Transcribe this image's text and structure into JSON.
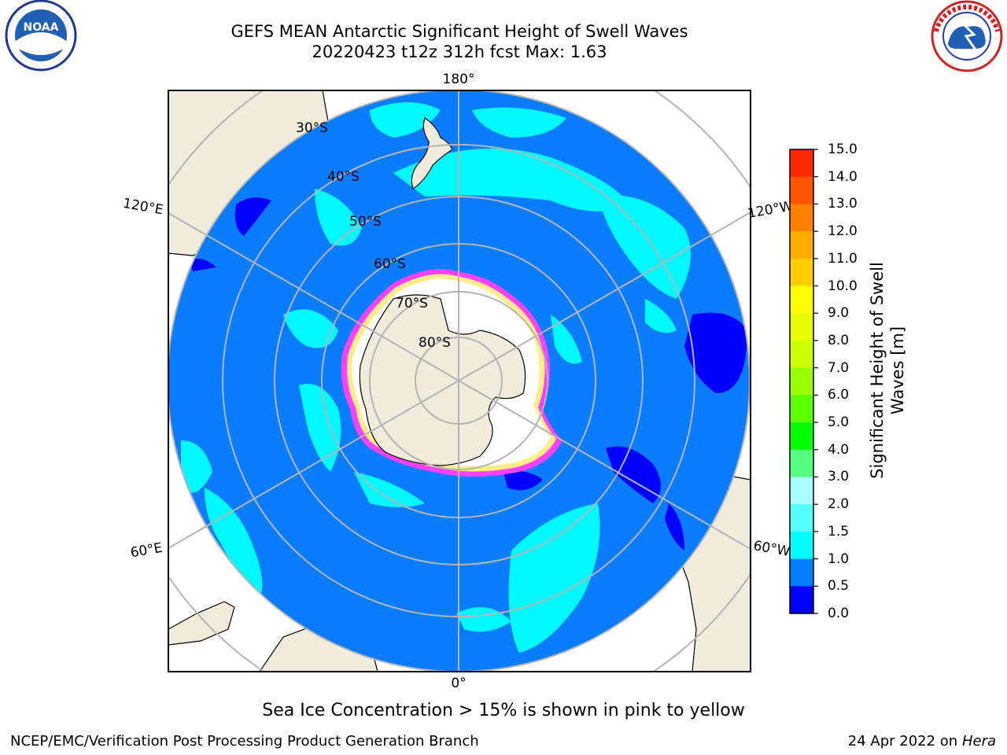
{
  "title": {
    "line1": "GEFS MEAN Antarctic Significant Height of Swell Waves",
    "line2": "20220423 t12z 312h fcst   Max: 1.63"
  },
  "map": {
    "projection": "south-polar-stereographic",
    "lon_labels": [
      "180°",
      "120°E",
      "120°W",
      "60°E",
      "60°W",
      "0°"
    ],
    "lat_labels": [
      "30°S",
      "40°S",
      "50°S",
      "60°S",
      "70°S",
      "80°S"
    ],
    "colors": {
      "ocean_low": "#0a7dff",
      "land": "#efecdc",
      "ice_land": "#ffffff",
      "swell_mid": "#00ffff",
      "swell_min": "#0000ff",
      "graticule": "#b4b4b4"
    }
  },
  "colorbar": {
    "label": "Significant Height of Swell Waves [m]",
    "ticks": [
      "15.0",
      "14.0",
      "13.0",
      "12.0",
      "11.0",
      "10.0",
      "9.0",
      "8.0",
      "7.0",
      "6.0",
      "5.0",
      "4.0",
      "3.0",
      "2.0",
      "1.5",
      "1.0",
      "0.5",
      "0.0"
    ],
    "colors": [
      "#ff0000",
      "#ff2a00",
      "#ff5500",
      "#ff8000",
      "#ffaa00",
      "#ffcc00",
      "#ffff00",
      "#e6ff00",
      "#ccff00",
      "#99ff00",
      "#5aff00",
      "#00ff00",
      "#55ff80",
      "#aaffff",
      "#55ffff",
      "#00ffff",
      "#0080ff",
      "#0000ff"
    ]
  },
  "note": "Sea Ice Concentration > 15% is shown in pink to yellow",
  "credit": "NCEP/EMC/Verification Post Processing Product Generation Branch",
  "stamp": {
    "date": "24 Apr 2022 on",
    "machine": "Hera"
  },
  "logos": {
    "left": "NOAA",
    "right": "NATIONAL WEATHER SERVICE"
  }
}
